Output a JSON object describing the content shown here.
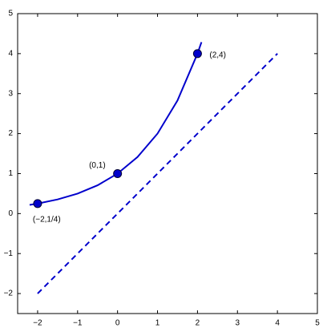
{
  "chart_data": {
    "type": "line",
    "xlim": [
      -2.5,
      5
    ],
    "ylim": [
      -2.5,
      5
    ],
    "xticks": [
      {
        "value": -2,
        "label": "−2"
      },
      {
        "value": -1,
        "label": "−1"
      },
      0,
      1,
      2,
      3,
      4,
      5
    ],
    "yticks": [
      {
        "value": -2,
        "label": "−2"
      },
      {
        "value": -1,
        "label": "−1"
      },
      0,
      1,
      2,
      3,
      4,
      5
    ],
    "series": [
      {
        "color": "#0000cc",
        "style": "solid",
        "x": [
          -2.2,
          -2,
          -1.5,
          -1,
          -0.5,
          0,
          0.5,
          1,
          1.5,
          2,
          2.1
        ],
        "values": [
          0.218,
          0.25,
          0.354,
          0.5,
          0.707,
          1,
          1.414,
          2,
          2.828,
          4,
          4.287
        ]
      },
      {
        "color": "#0000cc",
        "style": "dashed",
        "x": [
          -2,
          4
        ],
        "values": [
          -2,
          4
        ]
      }
    ],
    "points": {
      "color": "#0000cc",
      "x": [
        -2,
        0,
        2
      ],
      "values": [
        0.25,
        1,
        4
      ],
      "labels": [
        "(−2,1/4)",
        "(0,1)",
        "(2,4)"
      ]
    }
  }
}
